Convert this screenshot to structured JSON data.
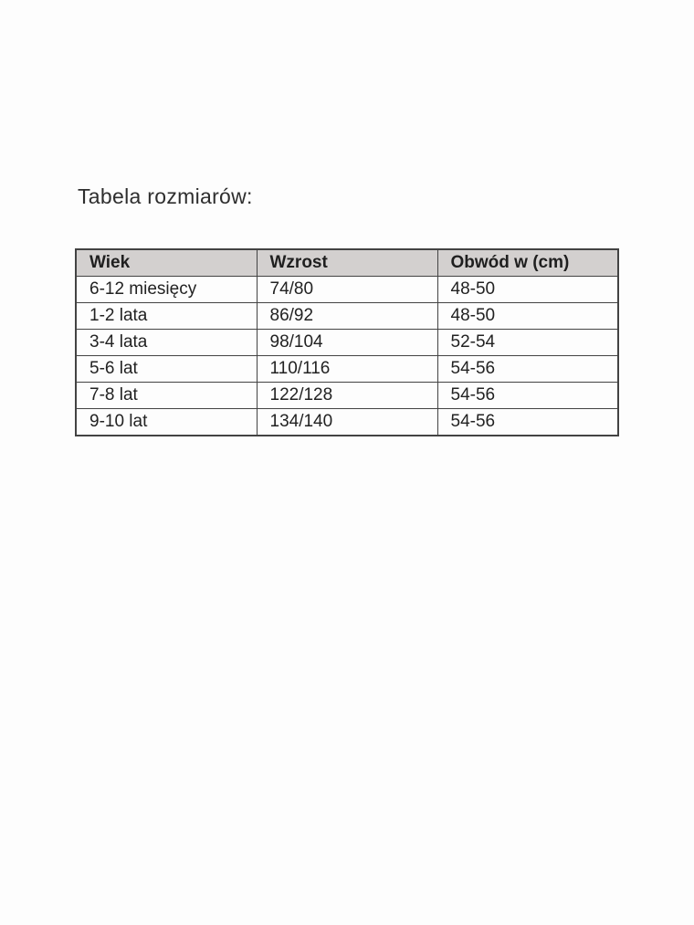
{
  "page": {
    "background_color": "#fdfdfd"
  },
  "title": "Tabela rozmiarów:",
  "table": {
    "colors": {
      "header_background": "#d3d0cf",
      "border": "#434343",
      "text": "#222222"
    },
    "headers": [
      "Wiek",
      "Wzrost",
      "Obwód w (cm)"
    ],
    "rows": [
      [
        "6-12 miesięcy",
        "74/80",
        "48-50"
      ],
      [
        "1-2 lata",
        "86/92",
        "48-50"
      ],
      [
        "3-4 lata",
        "98/104",
        "52-54"
      ],
      [
        "5-6 lat",
        "110/116",
        "54-56"
      ],
      [
        "7-8 lat",
        "122/128",
        "54-56"
      ],
      [
        "9-10 lat",
        "134/140",
        "54-56"
      ]
    ]
  }
}
